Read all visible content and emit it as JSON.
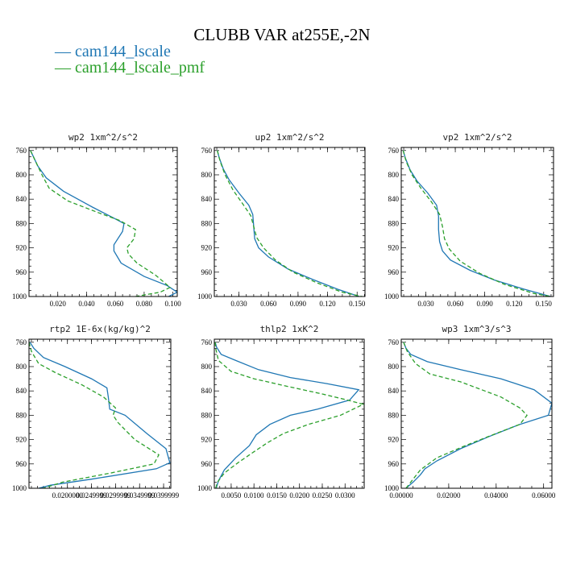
{
  "title": "CLUBB VAR at255E,-2N",
  "legend": [
    {
      "label": "— cam144_lscale",
      "color": "#1f77b4"
    },
    {
      "label": "— cam144_lscale_pmf",
      "color": "#2ca02c"
    }
  ],
  "chart_data": [
    {
      "type": "line",
      "title": "wp2  1xm^2/s^2",
      "ylim": [
        1000,
        755
      ],
      "xlim": [
        0.0,
        0.103
      ],
      "yticks": [
        760,
        800,
        840,
        880,
        920,
        960,
        1000
      ],
      "xticks": [
        "0.020",
        "0.040",
        "0.060",
        "0.080",
        "0.100"
      ],
      "xtick_values": [
        0.02,
        0.04,
        0.06,
        0.08,
        0.1
      ],
      "series": [
        {
          "name": "cam144_lscale",
          "color": "#1f77b4",
          "dash": "",
          "x": [
            0.001,
            0.003,
            0.006,
            0.012,
            0.024,
            0.044,
            0.058,
            0.066,
            0.065,
            0.059,
            0.059,
            0.064,
            0.08,
            0.096,
            0.103,
            0.097
          ],
          "y": [
            760,
            770,
            785,
            805,
            827,
            853,
            870,
            880,
            893,
            915,
            925,
            945,
            967,
            982,
            993,
            1000
          ]
        },
        {
          "name": "cam144_lscale_pmf",
          "color": "#2ca02c",
          "dash": "5,3",
          "x": [
            0.001,
            0.004,
            0.009,
            0.014,
            0.027,
            0.048,
            0.063,
            0.074,
            0.073,
            0.068,
            0.069,
            0.075,
            0.088,
            0.098,
            0.091,
            0.074
          ],
          "y": [
            760,
            775,
            800,
            822,
            843,
            862,
            875,
            890,
            905,
            920,
            930,
            945,
            965,
            985,
            993,
            1000
          ]
        }
      ]
    },
    {
      "type": "line",
      "title": "up2  1xm^2/s^2",
      "ylim": [
        1000,
        755
      ],
      "xlim": [
        0.005,
        0.158
      ],
      "yticks": [
        760,
        800,
        840,
        880,
        920,
        960,
        1000
      ],
      "xticks": [
        "0.030",
        "0.060",
        "0.090",
        "0.120",
        "0.150"
      ],
      "xtick_values": [
        0.03,
        0.06,
        0.09,
        0.12,
        0.15
      ],
      "series": [
        {
          "name": "cam144_lscale",
          "color": "#1f77b4",
          "dash": "",
          "x": [
            0.008,
            0.01,
            0.014,
            0.02,
            0.03,
            0.04,
            0.044,
            0.045,
            0.046,
            0.05,
            0.06,
            0.08,
            0.105,
            0.13,
            0.152
          ],
          "y": [
            760,
            772,
            790,
            808,
            830,
            850,
            865,
            885,
            905,
            920,
            935,
            955,
            972,
            988,
            1000
          ]
        },
        {
          "name": "cam144_lscale_pmf",
          "color": "#2ca02c",
          "dash": "5,3",
          "x": [
            0.008,
            0.011,
            0.016,
            0.024,
            0.034,
            0.042,
            0.045,
            0.048,
            0.055,
            0.067,
            0.085,
            0.11,
            0.135,
            0.155
          ],
          "y": [
            760,
            778,
            800,
            825,
            848,
            867,
            885,
            903,
            920,
            940,
            960,
            978,
            993,
            1000
          ]
        }
      ]
    },
    {
      "type": "line",
      "title": "vp2  1xm^2/s^2",
      "ylim": [
        1000,
        755
      ],
      "xlim": [
        0.005,
        0.16
      ],
      "yticks": [
        760,
        800,
        840,
        880,
        920,
        960,
        1000
      ],
      "xticks": [
        "0.030",
        "0.060",
        "0.090",
        "0.120",
        "0.150"
      ],
      "xtick_values": [
        0.03,
        0.06,
        0.09,
        0.12,
        0.15
      ],
      "series": [
        {
          "name": "cam144_lscale",
          "color": "#1f77b4",
          "dash": "",
          "x": [
            0.007,
            0.009,
            0.014,
            0.021,
            0.032,
            0.041,
            0.043,
            0.043,
            0.044,
            0.047,
            0.055,
            0.075,
            0.1,
            0.13,
            0.157
          ],
          "y": [
            760,
            772,
            792,
            810,
            830,
            850,
            868,
            890,
            910,
            925,
            940,
            957,
            973,
            988,
            1000
          ]
        },
        {
          "name": "cam144_lscale_pmf",
          "color": "#2ca02c",
          "dash": "5,3",
          "x": [
            0.007,
            0.01,
            0.016,
            0.025,
            0.036,
            0.044,
            0.047,
            0.049,
            0.054,
            0.065,
            0.085,
            0.11,
            0.14,
            0.157
          ],
          "y": [
            760,
            778,
            800,
            822,
            845,
            865,
            885,
            905,
            922,
            942,
            962,
            980,
            995,
            1000
          ]
        }
      ]
    },
    {
      "type": "line",
      "title": "rtp2  1E-6x(kg/kg)^2",
      "ylim": [
        1000,
        755
      ],
      "xlim": [
        0.012,
        0.0415
      ],
      "yticks": [
        760,
        800,
        840,
        880,
        920,
        960,
        1000
      ],
      "xticks": [
        "0.0200000",
        "0.0249999",
        "0.0299999",
        "0.0349999",
        "0.0399999"
      ],
      "xtick_values": [
        0.02,
        0.025,
        0.03,
        0.035,
        0.04
      ],
      "series": [
        {
          "name": "cam144_lscale",
          "color": "#1f77b4",
          "dash": "",
          "x": [
            0.0122,
            0.013,
            0.015,
            0.0195,
            0.025,
            0.0282,
            0.0285,
            0.0288,
            0.032,
            0.0365,
            0.0405,
            0.0413,
            0.0385,
            0.025,
            0.0165,
            0.014
          ],
          "y": [
            760,
            770,
            785,
            800,
            820,
            835,
            850,
            870,
            880,
            910,
            935,
            958,
            968,
            985,
            995,
            1000
          ]
        },
        {
          "name": "cam144_lscale_pmf",
          "color": "#2ca02c",
          "dash": "5,3",
          "x": [
            0.012,
            0.0125,
            0.014,
            0.0175,
            0.023,
            0.0275,
            0.03,
            0.0295,
            0.0305,
            0.034,
            0.039,
            0.038,
            0.029,
            0.019,
            0.015
          ],
          "y": [
            760,
            775,
            795,
            810,
            830,
            850,
            868,
            880,
            892,
            920,
            945,
            960,
            975,
            990,
            1000
          ]
        }
      ]
    },
    {
      "type": "line",
      "title": "thlp2  1xK^2",
      "ylim": [
        1000,
        755
      ],
      "xlim": [
        0.0013,
        0.0342
      ],
      "yticks": [
        760,
        800,
        840,
        880,
        920,
        960,
        1000
      ],
      "xticks": [
        "0.0050",
        "0.0100",
        "0.0150",
        "0.0200",
        "0.0250",
        "0.0300"
      ],
      "xtick_values": [
        0.005,
        0.01,
        0.015,
        0.02,
        0.025,
        0.03
      ],
      "series": [
        {
          "name": "cam144_lscale",
          "color": "#1f77b4",
          "dash": "",
          "x": [
            0.0015,
            0.0018,
            0.0028,
            0.006,
            0.011,
            0.018,
            0.026,
            0.033,
            0.031,
            0.024,
            0.018,
            0.0135,
            0.0105,
            0.009,
            0.006,
            0.0035,
            0.0022,
            0.0017
          ],
          "y": [
            760,
            768,
            780,
            790,
            805,
            818,
            828,
            838,
            855,
            870,
            880,
            895,
            912,
            930,
            950,
            970,
            988,
            1000
          ]
        },
        {
          "name": "cam144_lscale_pmf",
          "color": "#2ca02c",
          "dash": "5,3",
          "x": [
            0.0015,
            0.0016,
            0.0022,
            0.005,
            0.01,
            0.017,
            0.025,
            0.0305,
            0.034,
            0.029,
            0.022,
            0.0165,
            0.013,
            0.01,
            0.0065,
            0.0035,
            0.002,
            0.0016
          ],
          "y": [
            760,
            770,
            790,
            808,
            820,
            832,
            845,
            855,
            862,
            880,
            895,
            910,
            925,
            940,
            958,
            975,
            990,
            1000
          ]
        }
      ]
    },
    {
      "type": "line",
      "title": "wp3  1xm^3/s^3",
      "ylim": [
        1000,
        755
      ],
      "xlim": [
        0.0,
        0.0635
      ],
      "yticks": [
        760,
        800,
        840,
        880,
        920,
        960,
        1000
      ],
      "xticks": [
        "0.00000",
        "0.02000",
        "0.04000",
        "0.06000"
      ],
      "xtick_values": [
        0.0,
        0.02,
        0.04,
        0.06
      ],
      "series": [
        {
          "name": "cam144_lscale",
          "color": "#1f77b4",
          "dash": "",
          "x": [
            0.001,
            0.002,
            0.004,
            0.011,
            0.025,
            0.042,
            0.056,
            0.0635,
            0.062,
            0.05,
            0.037,
            0.025,
            0.015,
            0.01,
            0.008,
            0.005,
            0.002
          ],
          "y": [
            760,
            770,
            780,
            792,
            805,
            820,
            838,
            860,
            880,
            895,
            915,
            935,
            955,
            968,
            978,
            990,
            1000
          ]
        },
        {
          "name": "cam144_lscale_pmf",
          "color": "#2ca02c",
          "dash": "5,3",
          "x": [
            0.001,
            0.0025,
            0.006,
            0.012,
            0.025,
            0.042,
            0.05,
            0.053,
            0.05,
            0.04,
            0.027,
            0.015,
            0.008,
            0.005,
            0.002
          ],
          "y": [
            760,
            775,
            795,
            812,
            825,
            850,
            868,
            880,
            895,
            910,
            930,
            950,
            970,
            985,
            1000
          ]
        }
      ]
    }
  ]
}
